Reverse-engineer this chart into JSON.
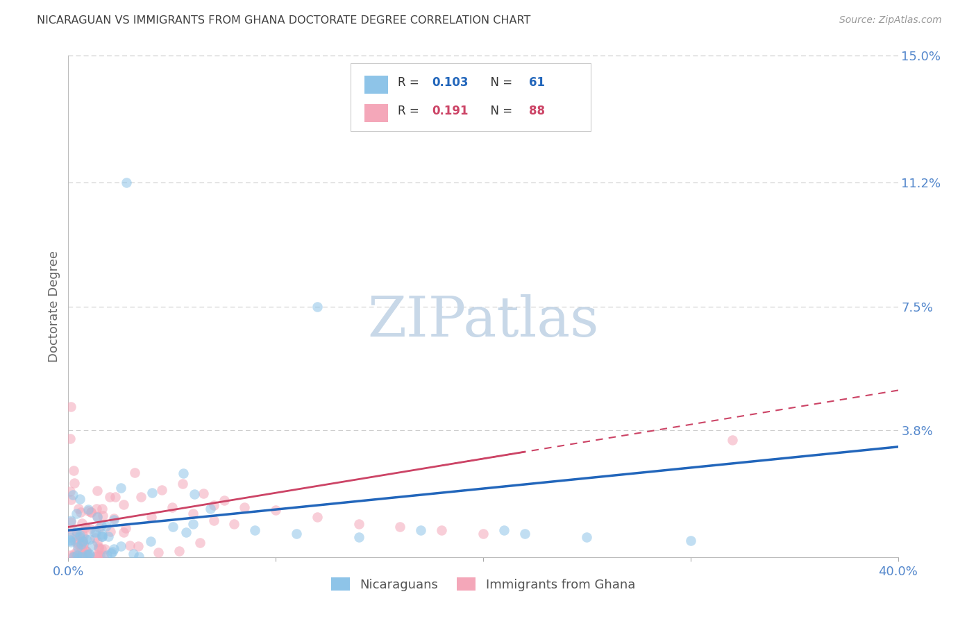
{
  "title": "NICARAGUAN VS IMMIGRANTS FROM GHANA DOCTORATE DEGREE CORRELATION CHART",
  "source": "Source: ZipAtlas.com",
  "ylabel": "Doctorate Degree",
  "xlim": [
    0.0,
    0.4
  ],
  "ylim": [
    0.0,
    0.15
  ],
  "ytick_labels": [
    "15.0%",
    "11.2%",
    "7.5%",
    "3.8%"
  ],
  "ytick_positions": [
    0.15,
    0.112,
    0.075,
    0.038
  ],
  "legend_label1": "Nicaraguans",
  "legend_label2": "Immigrants from Ghana",
  "color_blue": "#8ec4e8",
  "color_pink": "#f4a7b9",
  "trendline_blue": "#2266bb",
  "trendline_pink": "#cc4466",
  "background_color": "#ffffff",
  "grid_color": "#cccccc",
  "title_color": "#404040",
  "axis_label_color": "#5588cc",
  "watermark_color": "#c8d8e8",
  "seed": 7
}
